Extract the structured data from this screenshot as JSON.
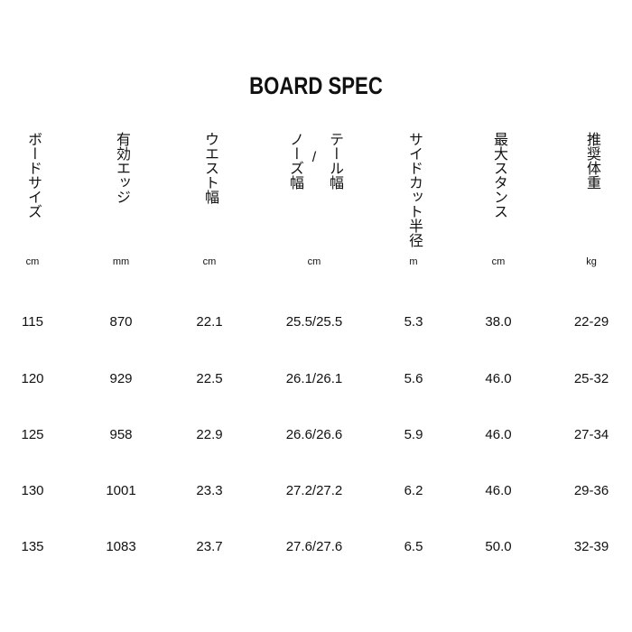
{
  "title": "BOARD SPEC",
  "columns": [
    {
      "header": "ボードサイズ",
      "unit": "cm"
    },
    {
      "header": "有効エッジ",
      "unit": "mm"
    },
    {
      "header": "ウエスト幅",
      "unit": "cm"
    },
    {
      "header_left": "ノーズ幅",
      "separator": "/",
      "header_right": "テール幅",
      "unit": "cm"
    },
    {
      "header": "サイドカット半径",
      "unit": "m"
    },
    {
      "header": "最大スタンス",
      "unit": "cm"
    },
    {
      "header": "推奨体重",
      "unit": "kg"
    }
  ],
  "rows": [
    [
      "115",
      "870",
      "22.1",
      "25.5/25.5",
      "5.3",
      "38.0",
      "22-29"
    ],
    [
      "120",
      "929",
      "22.5",
      "26.1/26.1",
      "5.6",
      "46.0",
      "25-32"
    ],
    [
      "125",
      "958",
      "22.9",
      "26.6/26.6",
      "5.9",
      "46.0",
      "27-34"
    ],
    [
      "130",
      "1001",
      "23.3",
      "27.2/27.2",
      "6.2",
      "46.0",
      "29-36"
    ],
    [
      "135",
      "1083",
      "23.7",
      "27.6/27.6",
      "6.5",
      "50.0",
      "32-39"
    ]
  ]
}
